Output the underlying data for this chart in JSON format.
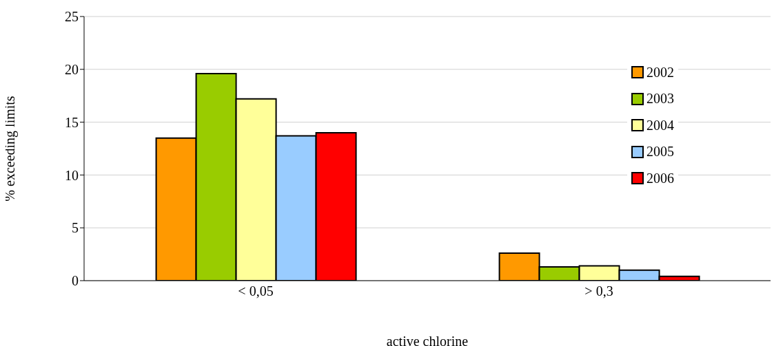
{
  "chart_data": {
    "type": "bar",
    "xlabel": "active chlorine",
    "ylabel": "% exceeding limits",
    "categories": [
      "< 0,05",
      "> 0,3"
    ],
    "series": [
      {
        "name": "2002",
        "color": "#ff9900",
        "values": [
          13.5,
          2.6
        ]
      },
      {
        "name": "2003",
        "color": "#99cc00",
        "values": [
          19.6,
          1.3
        ]
      },
      {
        "name": "2004",
        "color": "#ffff99",
        "values": [
          17.2,
          1.4
        ]
      },
      {
        "name": "2005",
        "color": "#99ccff",
        "values": [
          13.7,
          1.0
        ]
      },
      {
        "name": "2006",
        "color": "#ff0000",
        "values": [
          14.0,
          0.4
        ]
      }
    ],
    "ylim": [
      0,
      25
    ],
    "yticks": [
      0,
      5,
      10,
      15,
      20,
      25
    ],
    "grid": "y",
    "legend": "right"
  }
}
